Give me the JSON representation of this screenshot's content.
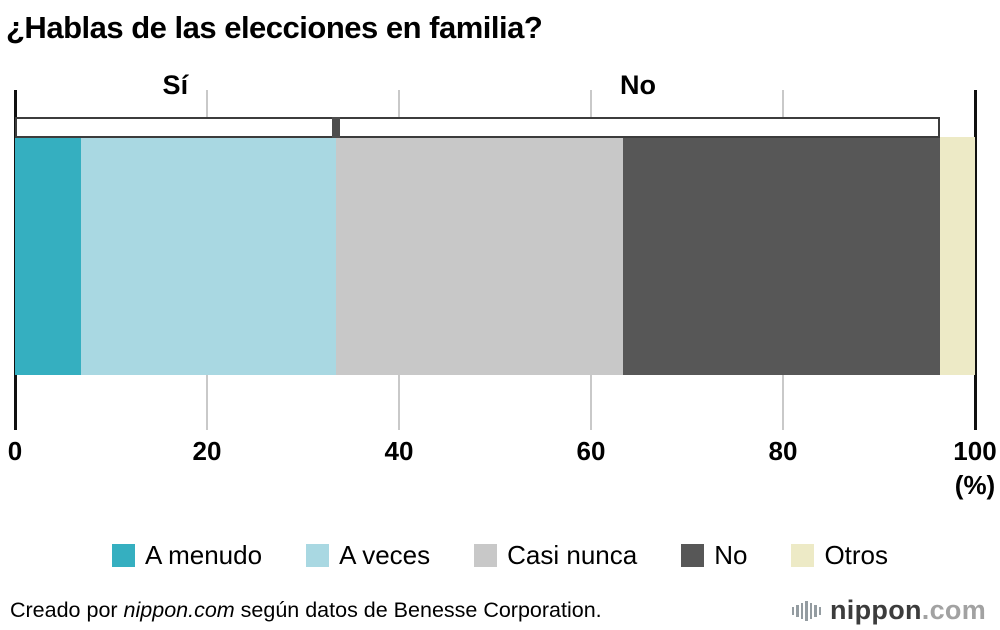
{
  "title": "¿Hablas de las elecciones en familia?",
  "chart_data": {
    "type": "bar",
    "variant": "horizontal-stacked-single-bar",
    "title": "¿Hablas de las elecciones en familia?",
    "xlim": [
      0,
      100
    ],
    "x_ticks": [
      0,
      20,
      40,
      60,
      80,
      100
    ],
    "x_unit": "(%)",
    "grid": true,
    "legend_position": "bottom",
    "segments": [
      {
        "label": "A menudo",
        "value": 6.9,
        "color": "#35afc0"
      },
      {
        "label": "A veces",
        "value": 26.5,
        "color": "#a9d8e2"
      },
      {
        "label": "Casi nunca",
        "value": 29.9,
        "color": "#c8c8c8"
      },
      {
        "label": "No",
        "value": 33.1,
        "color": "#575757"
      },
      {
        "label": "Otros",
        "value": 3.6,
        "color": "#edeac6"
      }
    ],
    "groups": [
      {
        "label": "Sí",
        "start": 0,
        "end": 33.4
      },
      {
        "label": "No",
        "start": 33.4,
        "end": 96.4
      }
    ],
    "colors": {
      "gridline": "#c9c9c9",
      "axis_line": "#101010",
      "bracket_border": "#3c3c3c"
    }
  },
  "footer": {
    "credit_prefix": "Creado por ",
    "credit_source": "nippon.com",
    "credit_suffix": " según datos de Benesse Corporation.",
    "logo_text": "nippon",
    "logo_suffix": ".com"
  }
}
